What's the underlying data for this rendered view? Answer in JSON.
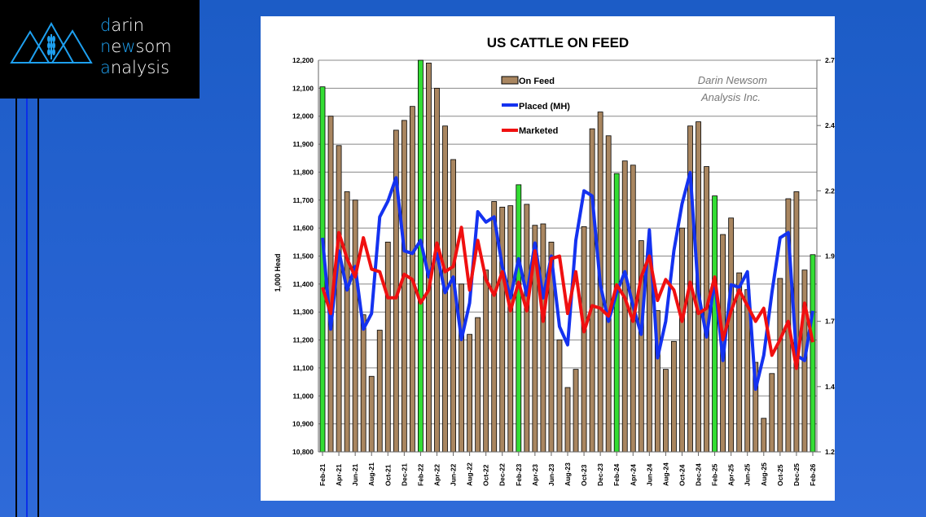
{
  "logo": {
    "line1_accent": "d",
    "line1_rest": "arin",
    "line2_a": "n",
    "line2_b": "e",
    "line2_c": "w",
    "line2_d": "som",
    "line3_accent": "a",
    "line3_rest": "nalysis"
  },
  "chart_data": {
    "type": "bar+line",
    "title": "US CATTLE ON FEED",
    "ylabel": "1,000 Head",
    "ylim": [
      10800,
      12200
    ],
    "y_ticks": [
      "10,800",
      "10,900",
      "11,000",
      "11,100",
      "11,200",
      "11,300",
      "11,400",
      "11,500",
      "11,600",
      "11,700",
      "11,800",
      "11,900",
      "12,000",
      "12,100",
      "12,200"
    ],
    "y2lim": [
      1.2,
      2.7
    ],
    "y2_ticks": [
      "1.2",
      "1.45",
      "1.7",
      "1.95",
      "2.2",
      "2.45",
      "2.7"
    ],
    "watermark": [
      "Darin Newsom",
      "Analysis Inc."
    ],
    "legend_position": "top-center",
    "grid": true,
    "categories": [
      "Feb-21",
      "Mar-21",
      "Apr-21",
      "May-21",
      "Jun-21",
      "Jul-21",
      "Aug-21",
      "Sep-21",
      "Oct-21",
      "Nov-21",
      "Dec-21",
      "Jan-22",
      "Feb-22",
      "Mar-22",
      "Apr-22",
      "May-22",
      "Jun-22",
      "Jul-22",
      "Aug-22",
      "Sep-22",
      "Oct-22",
      "Nov-22",
      "Dec-22",
      "Jan-23",
      "Feb-23",
      "Mar-23",
      "Apr-23",
      "May-23",
      "Jun-23",
      "Jul-23",
      "Aug-23",
      "Sep-23",
      "Oct-23",
      "Nov-23",
      "Dec-23",
      "Jan-24",
      "Feb-24",
      "Mar-24",
      "Apr-24",
      "May-24",
      "Jun-24",
      "Jul-24",
      "Aug-24",
      "Sep-24",
      "Oct-24",
      "Nov-24",
      "Dec-24",
      "Jan-25",
      "Feb-25",
      "Mar-25",
      "Apr-25",
      "May-25",
      "Jun-25",
      "Jul-25",
      "Aug-25",
      "Sep-25",
      "Oct-25",
      "Nov-25",
      "Dec-25",
      "Jan-26",
      "Feb-26"
    ],
    "x_tick_labels": [
      "Feb-21",
      "Apr-21",
      "Jun-21",
      "Aug-21",
      "Oct-21",
      "Dec-21",
      "Feb-22",
      "Apr-22",
      "Jun-22",
      "Aug-22",
      "Oct-22",
      "Dec-22",
      "Feb-23",
      "Apr-23",
      "Jun-23",
      "Aug-23",
      "Oct-23",
      "Dec-23",
      "Feb-24",
      "Apr-24",
      "Jun-24",
      "Aug-24",
      "Oct-24",
      "Dec-24",
      "Feb-25",
      "Apr-25",
      "Jun-25",
      "Aug-25",
      "Oct-25",
      "Dec-25",
      "Feb-26"
    ],
    "series": [
      {
        "name": "On Feed",
        "axis": "left",
        "type": "bar",
        "color": "#a98660",
        "highlight_color": "#33dd33",
        "highlight_months": [
          "Feb-21",
          "Feb-22",
          "Feb-23",
          "Feb-24",
          "Feb-25",
          "Feb-26"
        ],
        "values": [
          12105,
          12000,
          11895,
          11730,
          11700,
          11290,
          11070,
          11235,
          11550,
          11950,
          11985,
          12035,
          12200,
          12190,
          12100,
          11965,
          11845,
          11400,
          11220,
          11280,
          11450,
          11695,
          11675,
          11680,
          11755,
          11685,
          11610,
          11615,
          11550,
          11200,
          11030,
          11095,
          11605,
          11955,
          12015,
          11930,
          11795,
          11840,
          11825,
          11555,
          11520,
          11305,
          11095,
          11195,
          11600,
          11965,
          11980,
          11820,
          11715,
          11577,
          11636,
          11440,
          11380,
          11120,
          10920,
          11080,
          11420,
          11705,
          11730,
          11450,
          11505
        ]
      },
      {
        "name": "Placed (MH)",
        "axis": "right",
        "type": "line",
        "color": "#1432f0",
        "values": [
          2.02,
          1.67,
          1.97,
          1.82,
          1.91,
          1.67,
          1.73,
          2.1,
          2.16,
          2.25,
          1.97,
          1.96,
          2.01,
          1.87,
          1.96,
          1.81,
          1.87,
          1.63,
          1.77,
          2.12,
          2.08,
          2.1,
          1.91,
          1.79,
          1.94,
          1.8,
          2.0,
          1.79,
          1.95,
          1.68,
          1.61,
          2.01,
          2.2,
          2.18,
          1.84,
          1.7,
          1.81,
          1.89,
          1.76,
          1.65,
          2.05,
          1.56,
          1.7,
          1.97,
          2.15,
          2.27,
          1.81,
          1.64,
          1.86,
          1.55,
          1.84,
          1.83,
          1.89,
          1.44,
          1.57,
          1.81,
          2.02,
          2.04,
          1.57,
          1.55,
          1.74
        ]
      },
      {
        "name": "Marketed",
        "axis": "right",
        "type": "line",
        "color": "#f01010",
        "values": [
          1.83,
          1.73,
          2.04,
          1.94,
          1.87,
          2.02,
          1.9,
          1.89,
          1.79,
          1.79,
          1.88,
          1.86,
          1.77,
          1.82,
          2.0,
          1.89,
          1.91,
          2.06,
          1.82,
          2.01,
          1.86,
          1.8,
          1.89,
          1.74,
          1.85,
          1.74,
          1.97,
          1.7,
          1.94,
          1.95,
          1.73,
          1.89,
          1.66,
          1.76,
          1.75,
          1.72,
          1.84,
          1.79,
          1.7,
          1.87,
          1.95,
          1.78,
          1.86,
          1.82,
          1.7,
          1.85,
          1.73,
          1.75,
          1.87,
          1.63,
          1.74,
          1.82,
          1.76,
          1.7,
          1.75,
          1.57,
          1.63,
          1.7,
          1.52,
          1.77,
          1.62
        ]
      }
    ]
  }
}
